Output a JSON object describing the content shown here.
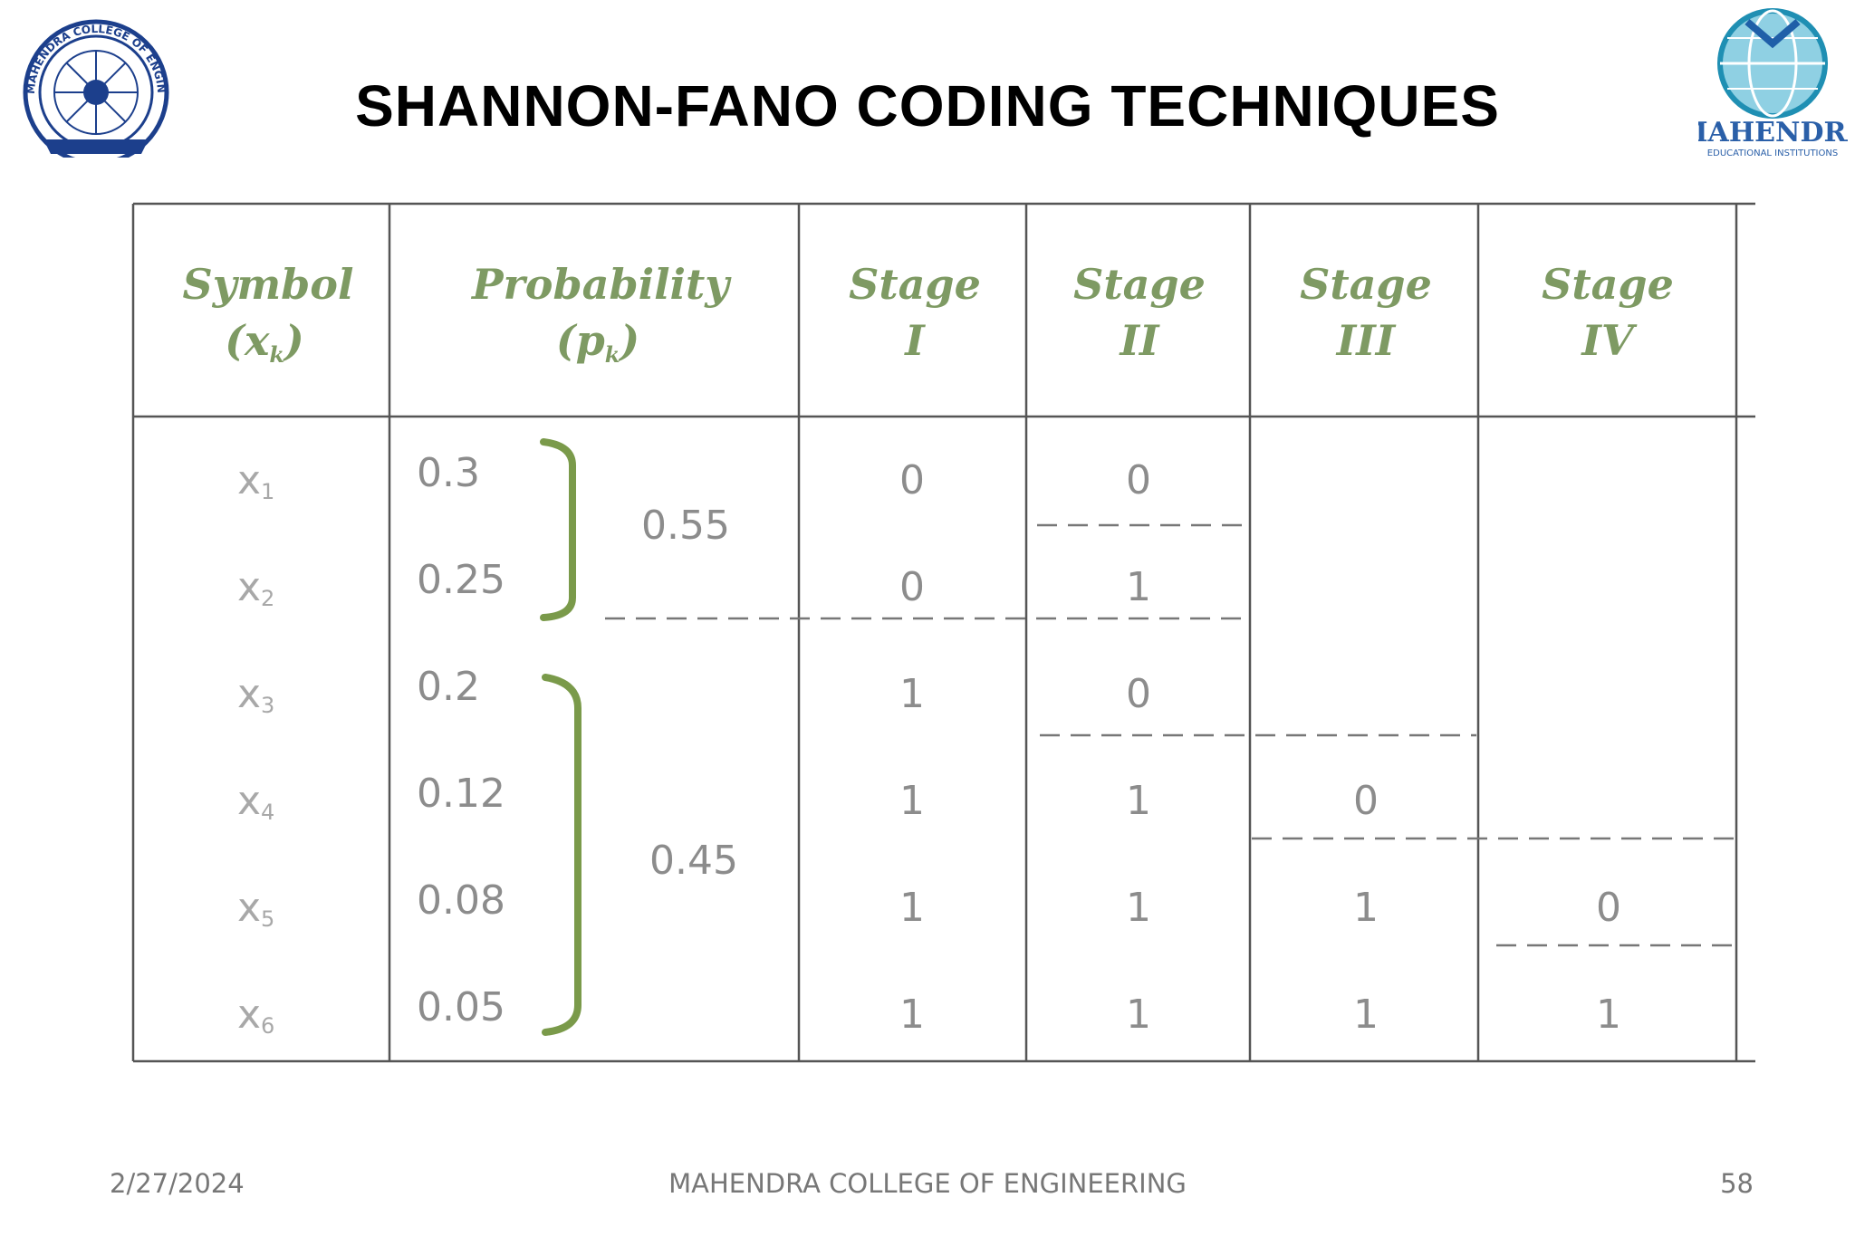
{
  "slide": {
    "title": "SHANNON-FANO CODING TECHNIQUES",
    "logos": {
      "left": {
        "icon": "college-seal-logo",
        "text": "MAHENDRA COLLEGE OF ENGINEERING"
      },
      "right": {
        "icon": "globe-logo",
        "text": "MAHENDRA",
        "subtext": "EDUCATIONAL INSTITUTIONS"
      }
    }
  },
  "table": {
    "headers": [
      {
        "line1": "Symbol",
        "line2": "(x",
        "line2_sub": "k",
        "line2_end": ")"
      },
      {
        "line1": "Probability",
        "line2": "(p",
        "line2_sub": "k",
        "line2_end": ")"
      },
      {
        "line1": "Stage",
        "line2": "I"
      },
      {
        "line1": "Stage",
        "line2": "II"
      },
      {
        "line1": "Stage",
        "line2": "III"
      },
      {
        "line1": "Stage",
        "line2": "IV"
      }
    ],
    "rows": [
      {
        "symbol": "x",
        "sub": "1",
        "prob": "0.3",
        "stage1": "0",
        "stage2": "0",
        "stage3": "",
        "stage4": ""
      },
      {
        "symbol": "x",
        "sub": "2",
        "prob": "0.25",
        "stage1": "0",
        "stage2": "1",
        "stage3": "",
        "stage4": ""
      },
      {
        "symbol": "x",
        "sub": "3",
        "prob": "0.2",
        "stage1": "1",
        "stage2": "0",
        "stage3": "",
        "stage4": ""
      },
      {
        "symbol": "x",
        "sub": "4",
        "prob": "0.12",
        "stage1": "1",
        "stage2": "1",
        "stage3": "0",
        "stage4": ""
      },
      {
        "symbol": "x",
        "sub": "5",
        "prob": "0.08",
        "stage1": "1",
        "stage2": "1",
        "stage3": "1",
        "stage4": "0"
      },
      {
        "symbol": "x",
        "sub": "6",
        "prob": "0.05",
        "stage1": "1",
        "stage2": "1",
        "stage3": "1",
        "stage4": "1"
      }
    ],
    "group_sums": [
      "0.55",
      "0.45"
    ],
    "colors": {
      "header": "#7e9a63",
      "bracket": "#7a9a4a",
      "grid": "#555555",
      "cell_text": "#8c8c8c"
    }
  },
  "footer": {
    "date": "2/27/2024",
    "center": "MAHENDRA COLLEGE OF ENGINEERING",
    "page": "58"
  }
}
